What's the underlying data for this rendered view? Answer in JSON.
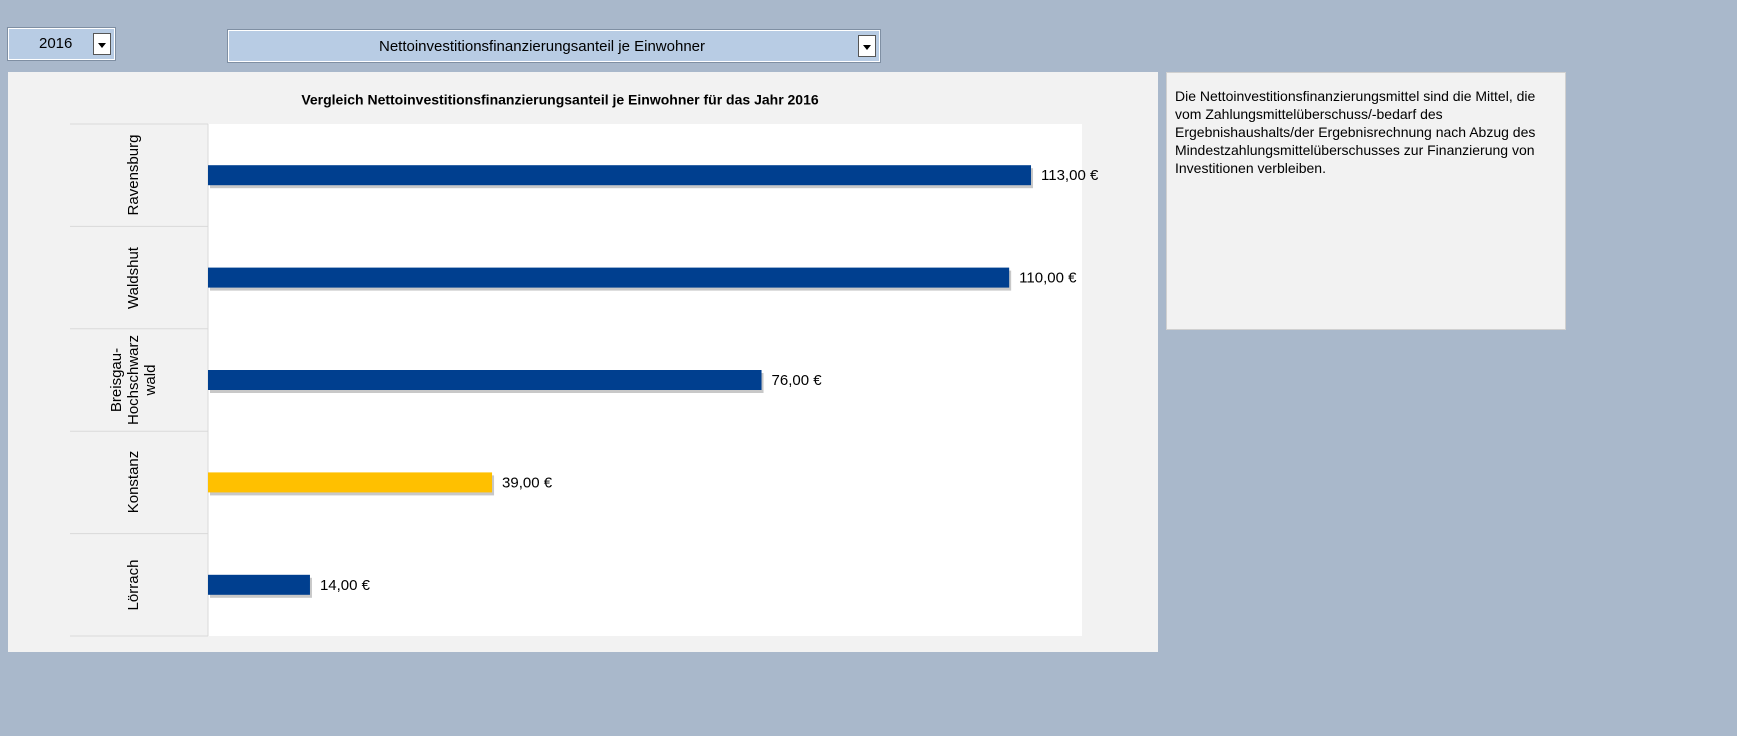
{
  "controls": {
    "year": "2016",
    "indicator": "Nettoinvestitionsfinanzierungsanteil je Einwohner"
  },
  "chart_data": {
    "type": "bar",
    "orientation": "horizontal",
    "title": "Vergleich Nettoinvestitionsfinanzierungsanteil je Einwohner für das Jahr 2016",
    "categories": [
      "Ravensburg",
      "Waldshut",
      "Breisgau-Hochschwarzwald",
      "Konstanz",
      "Lörrach"
    ],
    "values": [
      113,
      110,
      76,
      39,
      14
    ],
    "value_labels": [
      "113,00 €",
      "110,00 €",
      "76,00 €",
      "39,00 €",
      "14,00 €"
    ],
    "colors": [
      "#003f8f",
      "#003f8f",
      "#003f8f",
      "#ffc000",
      "#003f8f"
    ],
    "xlim": [
      0,
      120
    ]
  },
  "description": "Die Nettoinvestitionsfinanzierungsmittel sind die Mittel, die vom Zahlungsmittelüberschuss/-bedarf des Ergebnishaushalts/der Ergebnisrechnung nach Abzug des Mindestzahlungsmittelüberschusses zur Finanzierung von Investitionen verbleiben."
}
